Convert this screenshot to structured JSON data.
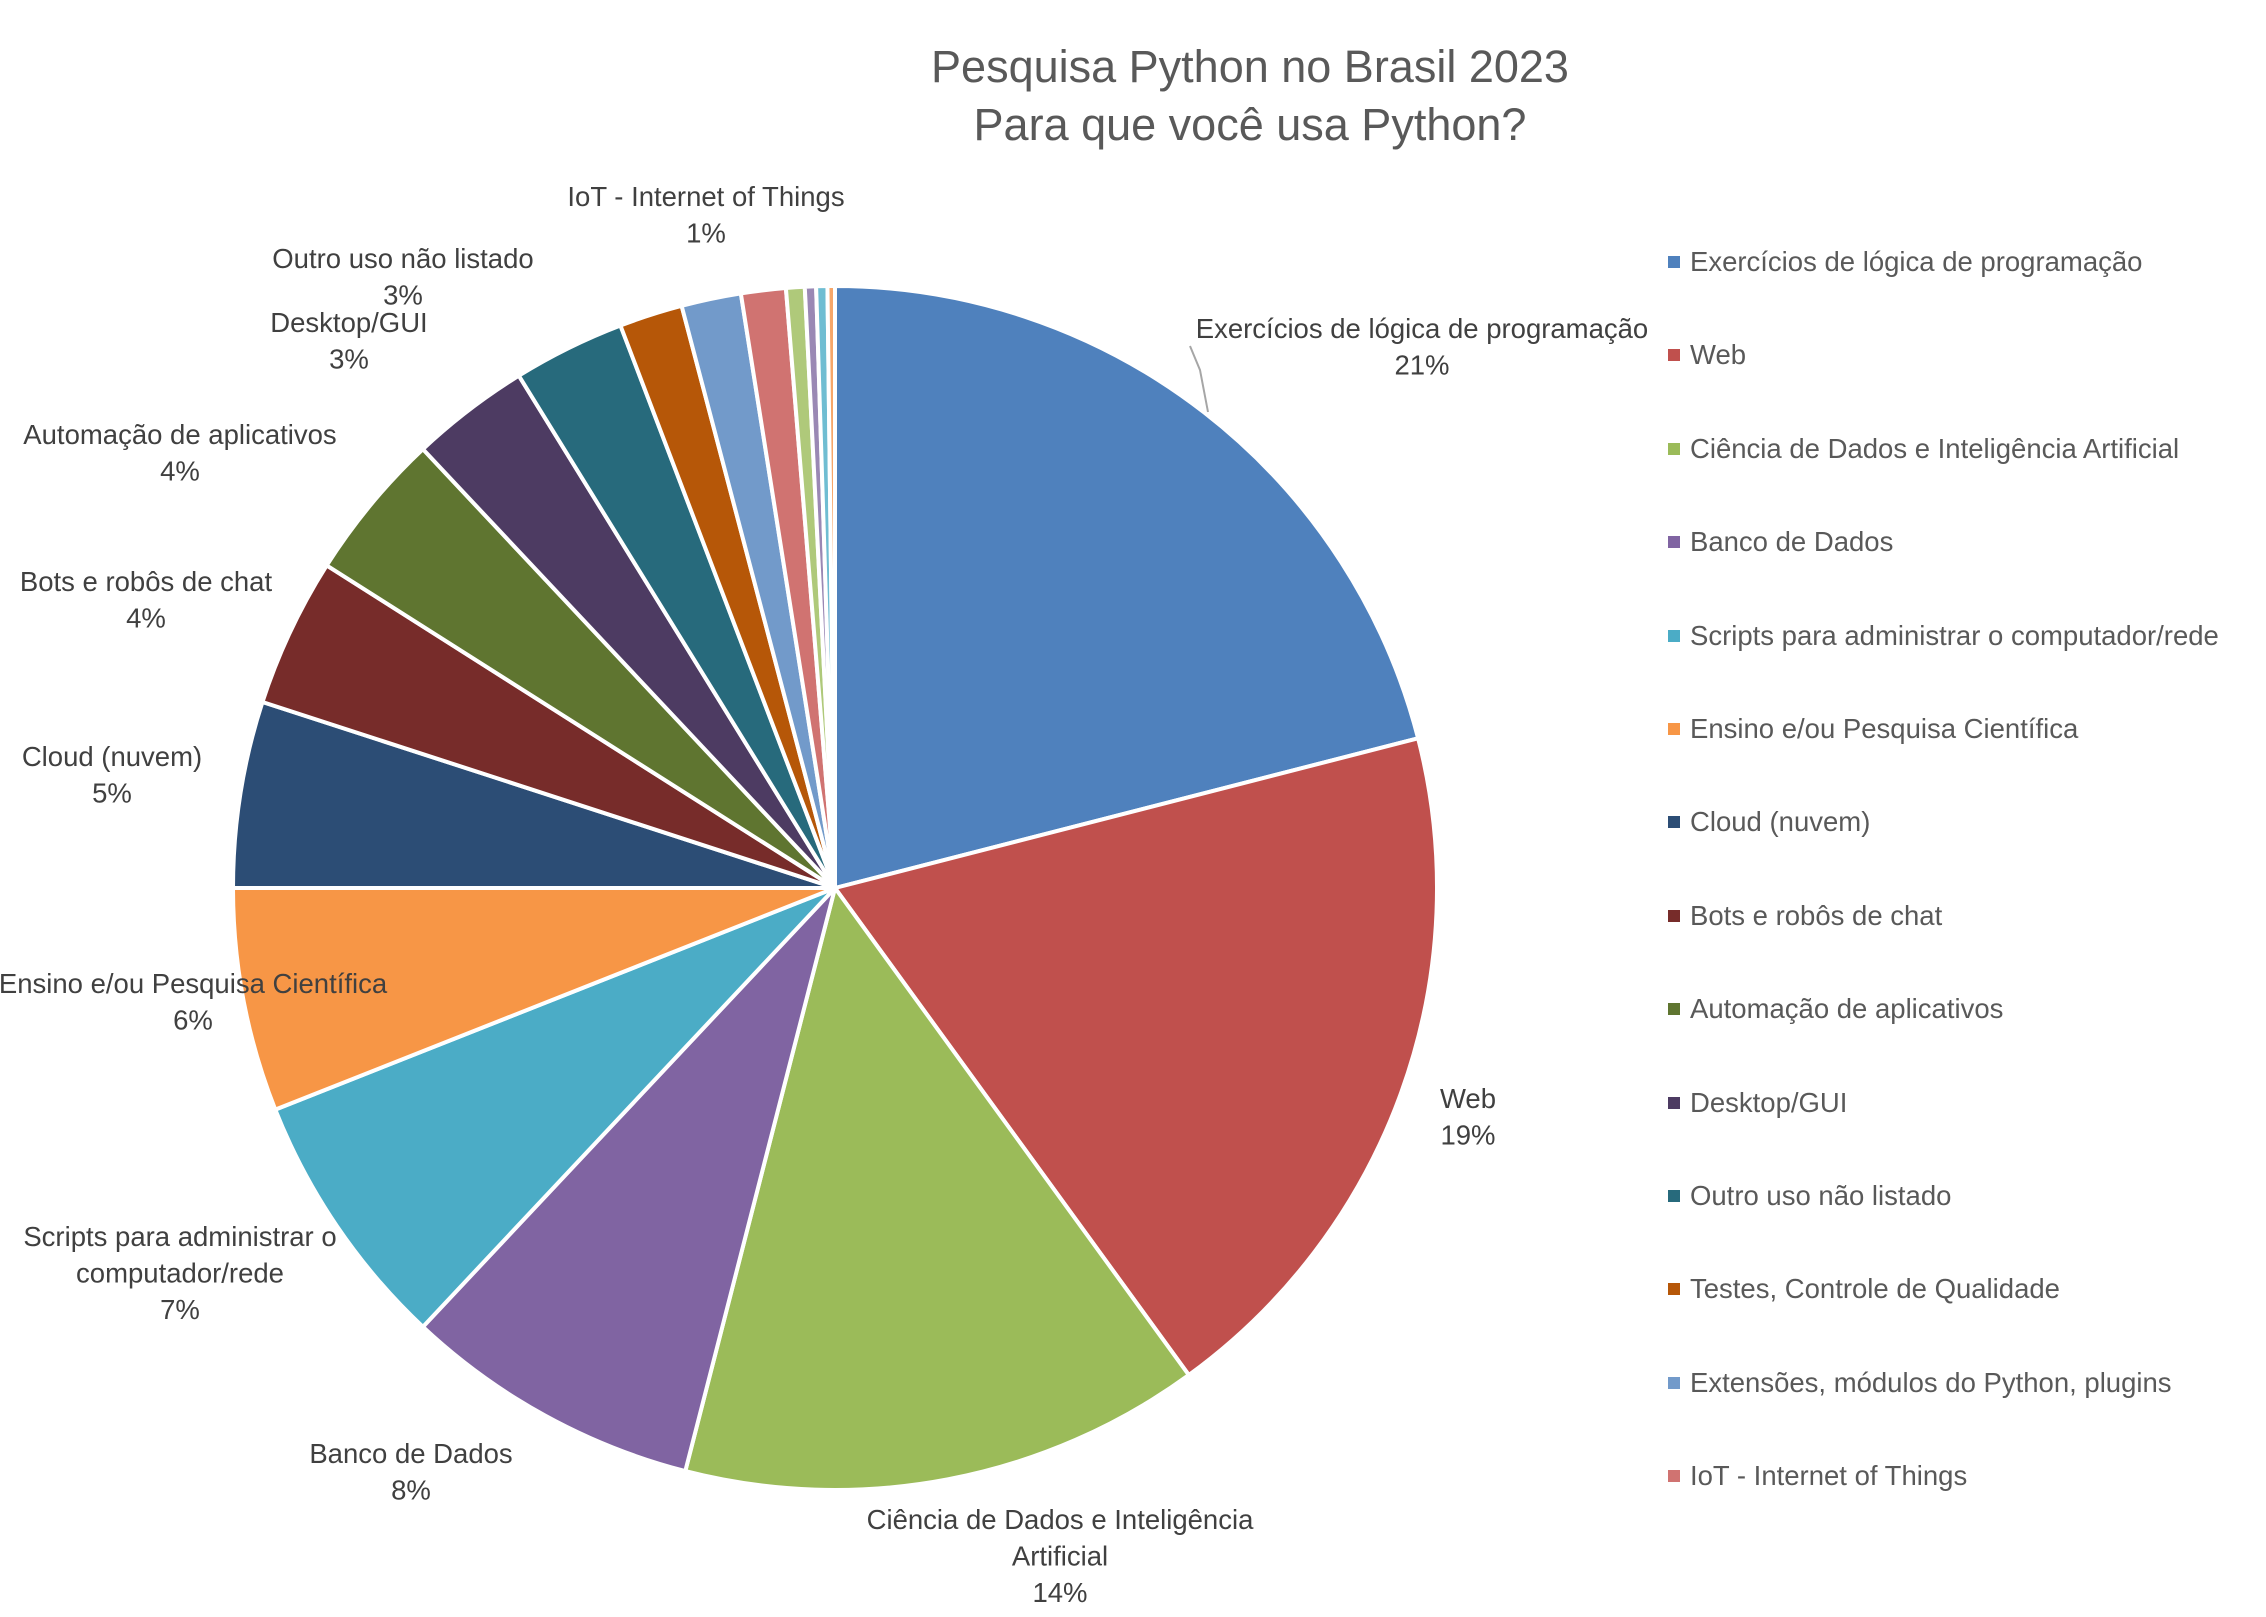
{
  "chart_data": {
    "type": "pie",
    "title": "Pesquisa Python no Brasil 2023",
    "subtitle": "Para que você usa Python?",
    "legend_position": "right",
    "slices": [
      {
        "name": "Exercícios de lógica de programação",
        "value": 21,
        "label": "21%",
        "color": "#4f81bd",
        "data_label_lines": [
          "Exercícios de lógica de programação",
          "21%"
        ]
      },
      {
        "name": "Web",
        "value": 19,
        "label": "19%",
        "color": "#c0504d",
        "data_label_lines": [
          "Web",
          "19%"
        ]
      },
      {
        "name": "Ciência de Dados e Inteligência Artificial",
        "value": 14,
        "label": "14%",
        "color": "#9bbb59",
        "data_label_lines": [
          "Ciência de Dados e Inteligência",
          "Artificial",
          "14%"
        ]
      },
      {
        "name": "Banco de Dados",
        "value": 8,
        "label": "8%",
        "color": "#8064a2",
        "data_label_lines": [
          "Banco de Dados",
          "8%"
        ]
      },
      {
        "name": "Scripts para administrar o computador/rede",
        "value": 7,
        "label": "7%",
        "color": "#4bacc6",
        "data_label_lines": [
          "Scripts para administrar o",
          "computador/rede",
          "7%"
        ]
      },
      {
        "name": "Ensino e/ou Pesquisa Científica",
        "value": 6,
        "label": "6%",
        "color": "#f79646",
        "data_label_lines": [
          "Ensino e/ou Pesquisa Científica",
          "6%"
        ]
      },
      {
        "name": "Cloud (nuvem)",
        "value": 5,
        "label": "5%",
        "color": "#2c4d75",
        "data_label_lines": [
          "Cloud (nuvem)",
          "5%"
        ]
      },
      {
        "name": "Bots e robôs de chat",
        "value": 4,
        "label": "4%",
        "color": "#772c2a",
        "data_label_lines": [
          "Bots e robôs de chat",
          "4%"
        ]
      },
      {
        "name": "Automação de aplicativos",
        "value": 4,
        "label": "4%",
        "color": "#5f7530",
        "data_label_lines": [
          "Automação de aplicativos",
          "4%"
        ]
      },
      {
        "name": "Desktop/GUI",
        "value": 3.2,
        "label": "3%",
        "color": "#4d3b62",
        "data_label_lines": [
          "Desktop/GUI",
          "3%"
        ]
      },
      {
        "name": "Outro uso não listado",
        "value": 3,
        "label": "3%",
        "color": "#276a7c",
        "data_label_lines": [
          "Outro uso não listado",
          "3%"
        ]
      },
      {
        "name": "Testes, Controle de Qualidade",
        "value": 1.7,
        "label": "",
        "color": "#b65708",
        "data_label_lines": []
      },
      {
        "name": "Extensões, módulos do Python, plugins",
        "value": 1.6,
        "label": "",
        "color": "#729aca",
        "data_label_lines": []
      },
      {
        "name": "IoT - Internet of Things",
        "value": 1.2,
        "label": "1%",
        "color": "#d07371",
        "data_label_lines": [
          "IoT - Internet of Things",
          "1%"
        ]
      },
      {
        "name": "",
        "value": 0.5,
        "label": "",
        "color": "#afc97a",
        "data_label_lines": []
      },
      {
        "name": "",
        "value": 0.3,
        "label": "",
        "color": "#9a88b4",
        "data_label_lines": []
      },
      {
        "name": "",
        "value": 0.3,
        "label": "",
        "color": "#6fbdd2",
        "data_label_lines": []
      },
      {
        "name": "",
        "value": 0.2,
        "label": "",
        "color": "#f7a76a",
        "data_label_lines": []
      }
    ]
  }
}
